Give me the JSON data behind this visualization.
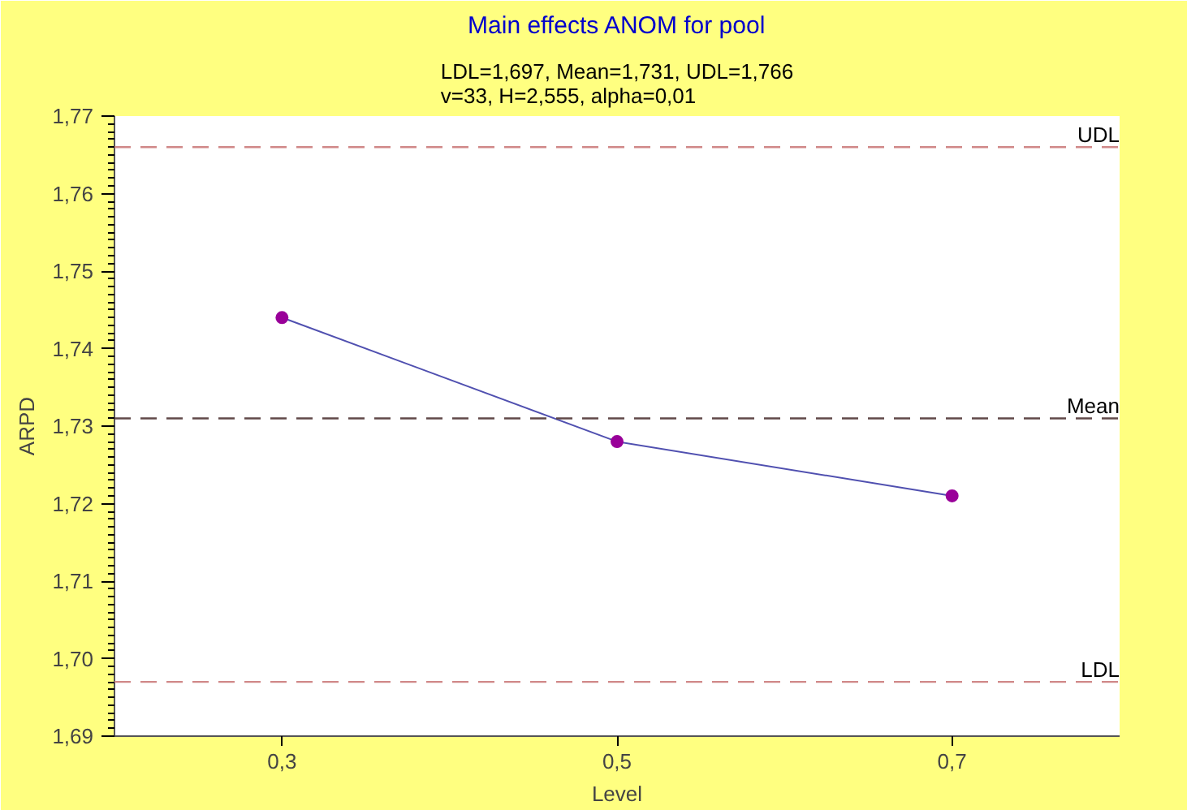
{
  "chart_data": {
    "type": "line",
    "title": "Main effects ANOM for pool",
    "subtitle": "LDL=1,697, Mean=1,731, UDL=1,766\nv=33, H=2,555, alpha=0,01",
    "xlabel": "Level",
    "ylabel": "ARPD",
    "x": [
      0.3,
      0.5,
      0.7
    ],
    "series": [
      {
        "color": "#5050b0",
        "values": [
          1.744,
          1.728,
          1.721
        ]
      }
    ],
    "marker": "circle",
    "line_style": "solid",
    "grid": false,
    "xlim": [
      0.2,
      0.8
    ],
    "ylim": [
      1.69,
      1.77
    ],
    "xticks": [
      {
        "value": 0.3,
        "label": "0,3"
      },
      {
        "value": 0.5,
        "label": "0,5"
      },
      {
        "value": 0.7,
        "label": "0,7"
      }
    ],
    "yticks": [
      {
        "value": 1.69,
        "label": "1,69"
      },
      {
        "value": 1.7,
        "label": "1,70"
      },
      {
        "value": 1.71,
        "label": "1,71"
      },
      {
        "value": 1.72,
        "label": "1,72"
      },
      {
        "value": 1.73,
        "label": "1,73"
      },
      {
        "value": 1.74,
        "label": "1,74"
      },
      {
        "value": 1.75,
        "label": "1,75"
      },
      {
        "value": 1.76,
        "label": "1,76"
      },
      {
        "value": 1.77,
        "label": "1,77"
      }
    ],
    "ref_lines": [
      {
        "axis": "y",
        "value": 1.766,
        "label": "UDL",
        "color": "#d08888",
        "line_style": "dashed"
      },
      {
        "axis": "y",
        "value": 1.731,
        "label": "Mean",
        "color": "#604848",
        "line_style": "dashed"
      },
      {
        "axis": "y",
        "value": 1.697,
        "label": "LDL",
        "color": "#d08888",
        "line_style": "dashed"
      }
    ]
  }
}
